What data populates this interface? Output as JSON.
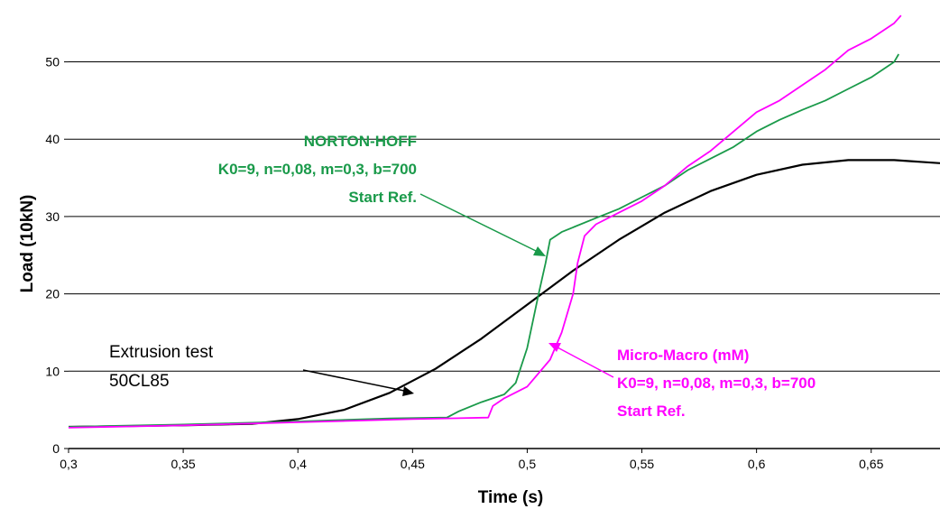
{
  "chart_data": {
    "type": "line",
    "title": "",
    "xlabel": "Time (s)",
    "ylabel": "Load (10kN)",
    "xlim": [
      0.3,
      0.68
    ],
    "ylim": [
      0,
      58
    ],
    "grid": "horizontal",
    "x_ticks": [
      0.3,
      0.35,
      0.4,
      0.45,
      0.5,
      0.55,
      0.6,
      0.65
    ],
    "x_tick_labels": [
      "0,3",
      "0,35",
      "0,4",
      "0,45",
      "0,5",
      "0,55",
      "0,6",
      "0,65"
    ],
    "y_ticks": [
      0,
      10,
      20,
      30,
      40,
      50
    ],
    "y_tick_labels": [
      "0",
      "10",
      "20",
      "30",
      "40",
      "50"
    ],
    "colors": {
      "test": "#000000",
      "norton": "#1a9a4a",
      "mm": "#ff00ff",
      "grid": "#000000"
    },
    "series": [
      {
        "key": "test",
        "x": [
          0.3,
          0.35,
          0.38,
          0.4,
          0.42,
          0.44,
          0.46,
          0.48,
          0.5,
          0.52,
          0.54,
          0.56,
          0.58,
          0.6,
          0.62,
          0.64,
          0.66,
          0.68
        ],
        "values": [
          2.8,
          3.0,
          3.2,
          3.8,
          5.0,
          7.2,
          10.3,
          14.2,
          18.6,
          23.0,
          27.0,
          30.5,
          33.3,
          35.4,
          36.7,
          37.3,
          37.3,
          36.9
        ]
      },
      {
        "key": "norton",
        "x": [
          0.3,
          0.35,
          0.4,
          0.44,
          0.465,
          0.47,
          0.48,
          0.49,
          0.495,
          0.5,
          0.505,
          0.508,
          0.51,
          0.515,
          0.52,
          0.53,
          0.54,
          0.55,
          0.56,
          0.57,
          0.58,
          0.59,
          0.6,
          0.61,
          0.62,
          0.63,
          0.64,
          0.65,
          0.66,
          0.662
        ],
        "values": [
          2.8,
          3.1,
          3.5,
          3.9,
          4.0,
          4.8,
          6.0,
          7.0,
          8.5,
          13.0,
          20.0,
          24.0,
          27.0,
          28.0,
          28.6,
          29.8,
          31.0,
          32.5,
          34.0,
          36.0,
          37.5,
          39.0,
          41.0,
          42.5,
          43.8,
          45.0,
          46.5,
          48.0,
          50.0,
          51.0
        ]
      },
      {
        "key": "mm",
        "x": [
          0.3,
          0.35,
          0.4,
          0.45,
          0.483,
          0.485,
          0.49,
          0.5,
          0.51,
          0.515,
          0.52,
          0.522,
          0.525,
          0.53,
          0.54,
          0.55,
          0.56,
          0.57,
          0.58,
          0.59,
          0.6,
          0.61,
          0.62,
          0.63,
          0.64,
          0.65,
          0.66,
          0.663
        ],
        "values": [
          2.7,
          3.0,
          3.4,
          3.8,
          4.0,
          5.5,
          6.5,
          8.0,
          11.5,
          15.0,
          20.0,
          24.0,
          27.5,
          29.0,
          30.5,
          32.0,
          34.0,
          36.5,
          38.5,
          41.0,
          43.5,
          45.0,
          47.0,
          49.0,
          51.5,
          53.0,
          55.0,
          56.0
        ]
      }
    ],
    "annotations": {
      "norton": [
        "NORTON-HOFF",
        "K0=9, n=0,08, m=0,3, b=700",
        "Start Ref."
      ],
      "test": [
        "Extrusion test",
        "50CL85"
      ],
      "mm": [
        "Micro-Macro (mM)",
        "K0=9, n=0,08, m=0,3, b=700",
        "Start Ref."
      ]
    }
  }
}
